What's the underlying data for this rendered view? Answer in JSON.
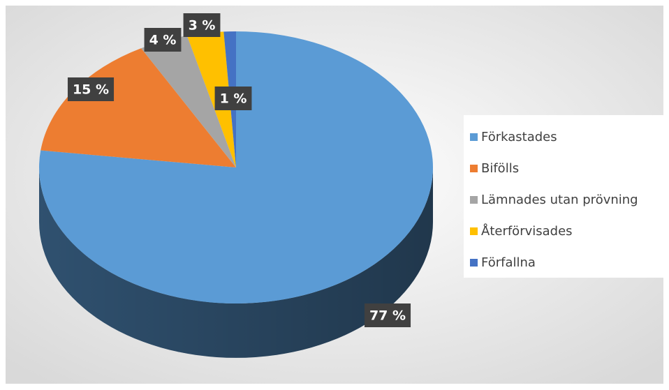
{
  "chart_data": {
    "type": "pie",
    "categories": [
      "Förkastades",
      "Bifölls",
      "Lämnades utan prövning",
      "Återförvisades",
      "Förfallna"
    ],
    "values": [
      77,
      15,
      4,
      3,
      1
    ],
    "value_labels": [
      "77 %",
      "15 %",
      "4 %",
      "3 %",
      "1 %"
    ],
    "colors": [
      "#5b9bd5",
      "#ed7d31",
      "#a5a5a5",
      "#ffc000",
      "#4472c4"
    ],
    "legend": "right"
  }
}
